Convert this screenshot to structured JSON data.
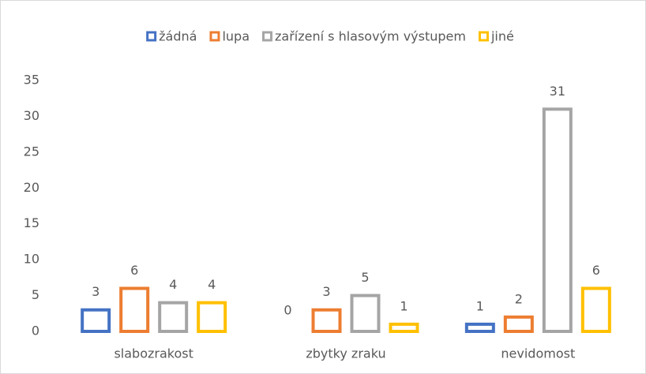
{
  "chart_data": {
    "type": "bar",
    "categories": [
      "slabozrakost",
      "zbytky zraku",
      "nevidomost"
    ],
    "series": [
      {
        "name": "žádná",
        "color": "#4472c4",
        "values": [
          3,
          0,
          1
        ]
      },
      {
        "name": "lupa",
        "color": "#ed7d31",
        "values": [
          6,
          3,
          2
        ]
      },
      {
        "name": "zařízení s hlasovým výstupem",
        "color": "#a5a5a5",
        "values": [
          4,
          5,
          31
        ]
      },
      {
        "name": "jiné",
        "color": "#ffc000",
        "values": [
          4,
          1,
          6
        ]
      }
    ],
    "ylim": [
      0,
      35
    ],
    "yticks": [
      0,
      5,
      10,
      15,
      20,
      25,
      30,
      35
    ],
    "grid": false,
    "legend": "top"
  }
}
